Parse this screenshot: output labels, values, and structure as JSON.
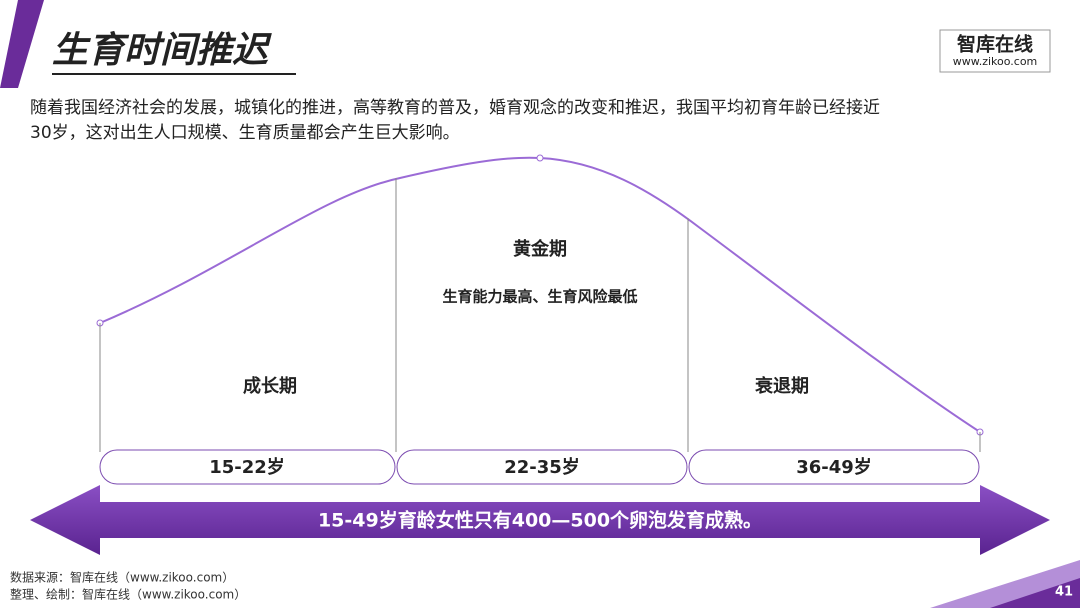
{
  "header": {
    "title": "生育时间推迟"
  },
  "logo": {
    "name": "智库在线",
    "url": "www.zikoo.com"
  },
  "intro": {
    "lines": [
      "随着我国经济社会的发展，城镇化的推进，高等教育的普及，婚育观念的改变和推迟，我国平均初育年龄已经接近",
      "30岁，这对出生人口规模、生育质量都会产生巨大影响。"
    ]
  },
  "stages": [
    {
      "name": "成长期",
      "ages": "15-22岁"
    },
    {
      "name": "黄金期",
      "note": "生育能力最高、生育风险最低",
      "ages": "22-35岁"
    },
    {
      "name": "衰退期",
      "ages": "36-49岁"
    }
  ],
  "arrow": {
    "text": "15-49岁育龄女性只有400—500个卵泡发育成熟。"
  },
  "footer": {
    "lines": [
      "数据来源：智库在线（www.zikoo.com）",
      "整理、绘制：智库在线（www.zikoo.com）"
    ]
  },
  "page_number": "41"
}
